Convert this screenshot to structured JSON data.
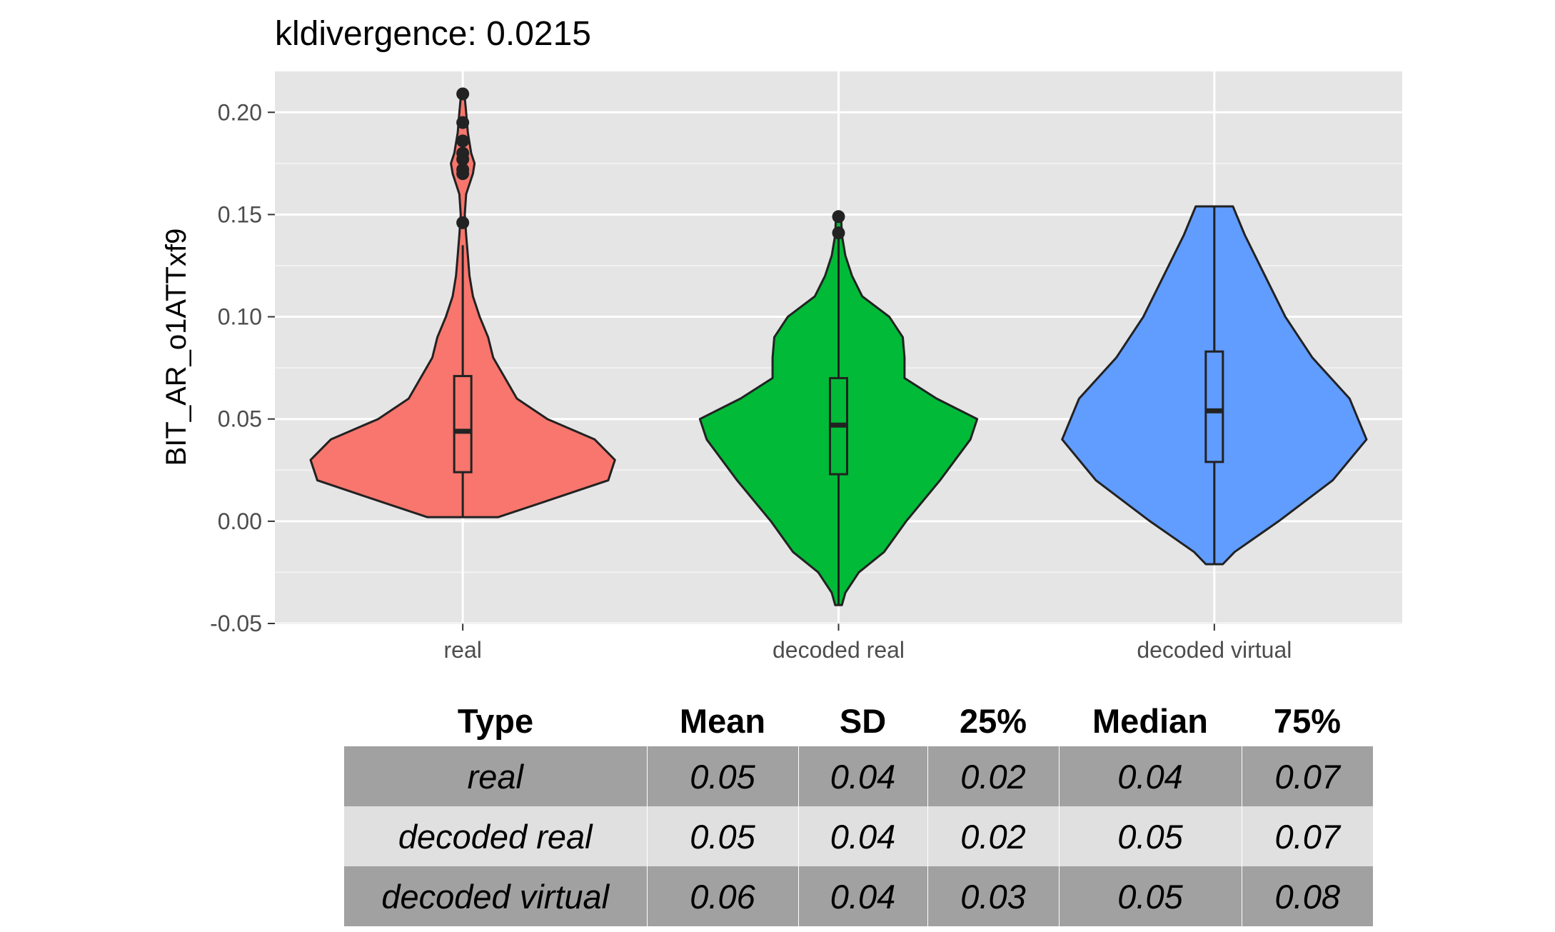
{
  "chart_data": {
    "type": "violin",
    "title": "kldivergence: 0.0215",
    "xlabel": "",
    "ylabel": "BIT_AR_o1ATTxf9",
    "ylim": [
      -0.05,
      0.22
    ],
    "yticks": [
      "-0.05",
      "0.00",
      "0.05",
      "0.10",
      "0.15",
      "0.20"
    ],
    "grid": true,
    "categories": [
      "real",
      "decoded real",
      "decoded virtual"
    ],
    "series": [
      {
        "category": "real",
        "color": "#F8766D",
        "y_min": 0.002,
        "y_max": 0.209,
        "box": {
          "q1": 0.024,
          "median": 0.044,
          "q3": 0.071,
          "whisker_low": 0.002,
          "whisker_high": 0.135
        },
        "outliers": [
          0.146,
          0.17,
          0.172,
          0.177,
          0.18,
          0.186,
          0.195,
          0.209
        ],
        "density": [
          [
            0.002,
            0.21
          ],
          [
            0.01,
            0.5
          ],
          [
            0.02,
            0.86
          ],
          [
            0.03,
            0.9
          ],
          [
            0.04,
            0.78
          ],
          [
            0.05,
            0.5
          ],
          [
            0.06,
            0.32
          ],
          [
            0.07,
            0.25
          ],
          [
            0.08,
            0.18
          ],
          [
            0.09,
            0.15
          ],
          [
            0.1,
            0.1
          ],
          [
            0.11,
            0.06
          ],
          [
            0.12,
            0.04
          ],
          [
            0.13,
            0.03
          ],
          [
            0.14,
            0.02
          ],
          [
            0.15,
            0.012
          ],
          [
            0.16,
            0.02
          ],
          [
            0.17,
            0.06
          ],
          [
            0.175,
            0.07
          ],
          [
            0.18,
            0.05
          ],
          [
            0.19,
            0.03
          ],
          [
            0.2,
            0.02
          ],
          [
            0.209,
            0.01
          ]
        ]
      },
      {
        "category": "decoded real",
        "color": "#00BA38",
        "y_min": -0.041,
        "y_max": 0.149,
        "box": {
          "q1": 0.023,
          "median": 0.047,
          "q3": 0.07,
          "whisker_low": -0.041,
          "whisker_high": 0.14
        },
        "outliers": [
          0.141,
          0.149
        ],
        "density": [
          [
            -0.041,
            0.02
          ],
          [
            -0.035,
            0.04
          ],
          [
            -0.025,
            0.12
          ],
          [
            -0.015,
            0.27
          ],
          [
            0.0,
            0.4
          ],
          [
            0.02,
            0.6
          ],
          [
            0.04,
            0.78
          ],
          [
            0.05,
            0.82
          ],
          [
            0.06,
            0.58
          ],
          [
            0.07,
            0.39
          ],
          [
            0.08,
            0.39
          ],
          [
            0.09,
            0.38
          ],
          [
            0.1,
            0.3
          ],
          [
            0.11,
            0.14
          ],
          [
            0.12,
            0.08
          ],
          [
            0.13,
            0.04
          ],
          [
            0.14,
            0.02
          ],
          [
            0.149,
            0.015
          ]
        ]
      },
      {
        "category": "decoded virtual",
        "color": "#619CFF",
        "y_min": -0.021,
        "y_max": 0.154,
        "box": {
          "q1": 0.029,
          "median": 0.054,
          "q3": 0.083,
          "whisker_low": -0.021,
          "whisker_high": 0.154
        },
        "outliers": [],
        "density": [
          [
            -0.021,
            0.05
          ],
          [
            -0.015,
            0.12
          ],
          [
            0.0,
            0.38
          ],
          [
            0.02,
            0.7
          ],
          [
            0.04,
            0.9
          ],
          [
            0.06,
            0.8
          ],
          [
            0.08,
            0.58
          ],
          [
            0.1,
            0.42
          ],
          [
            0.12,
            0.3
          ],
          [
            0.14,
            0.18
          ],
          [
            0.154,
            0.11
          ]
        ]
      }
    ]
  },
  "table": {
    "headers": [
      "Type",
      "Mean",
      "SD",
      "25%",
      "Median",
      "75%"
    ],
    "rows": [
      [
        "real",
        "0.05",
        "0.04",
        "0.02",
        "0.04",
        "0.07"
      ],
      [
        "decoded real",
        "0.05",
        "0.04",
        "0.02",
        "0.05",
        "0.07"
      ],
      [
        "decoded virtual",
        "0.06",
        "0.04",
        "0.03",
        "0.05",
        "0.08"
      ]
    ]
  }
}
